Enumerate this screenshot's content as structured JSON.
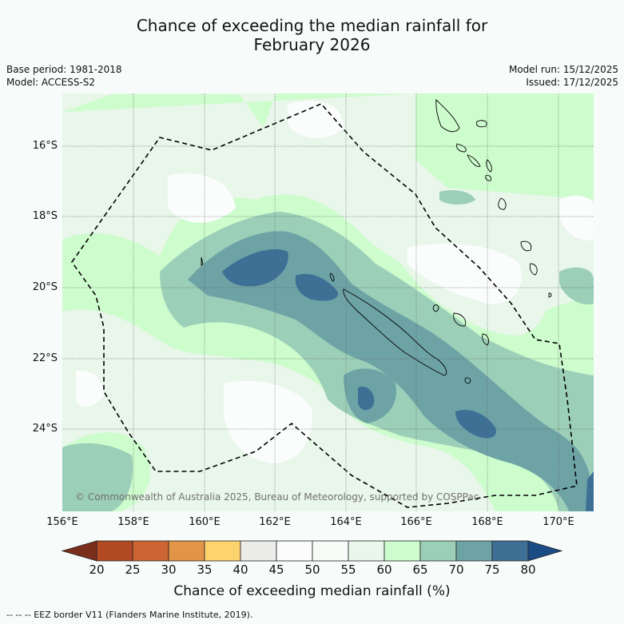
{
  "title_line1": "Chance of exceeding the median rainfall for",
  "title_line2": "February 2026",
  "meta": {
    "base_period": "Base period: 1981-2018",
    "model": "Model: ACCESS-S2",
    "model_run": "Model run: 15/12/2025",
    "issued": "Issued: 17/12/2025"
  },
  "map": {
    "lat_labels": [
      "16°S",
      "18°S",
      "20°S",
      "22°S",
      "24°S"
    ],
    "lon_labels": [
      "156°E",
      "158°E",
      "160°E",
      "162°E",
      "164°E",
      "166°E",
      "168°E",
      "170°E"
    ],
    "copyright": "© Commonwealth of Australia 2025, Bureau of Meteorology, supported by COSPPac",
    "colors": {
      "c40_45": "#ececec",
      "c45_55": "#fbfdfc",
      "c55_60": "#e9f6ea",
      "c60_65": "#cdfccd",
      "c65_70": "#9ccfb8",
      "c70_75": "#6ea3a6",
      "c75_80": "#3e7096",
      "ocean_bg": "#e9f6ea"
    }
  },
  "colorbar": {
    "ticks": [
      "20",
      "25",
      "30",
      "35",
      "40",
      "45",
      "50",
      "55",
      "60",
      "65",
      "70",
      "75",
      "80"
    ],
    "colors": [
      "#7a2f1c",
      "#b24a24",
      "#cc6533",
      "#e29447",
      "#fdd36e",
      "#ececea",
      "#fbfcfb",
      "#f8fcf9",
      "#e9f6ea",
      "#cdfccd",
      "#9ccfb8",
      "#6ea3a6",
      "#3e7096",
      "#1b4c85"
    ],
    "label": "Chance of exceeding median rainfall (%)"
  },
  "footer": "--  --  -- EEZ border V11 (Flanders Marine Institute, 2019)."
}
